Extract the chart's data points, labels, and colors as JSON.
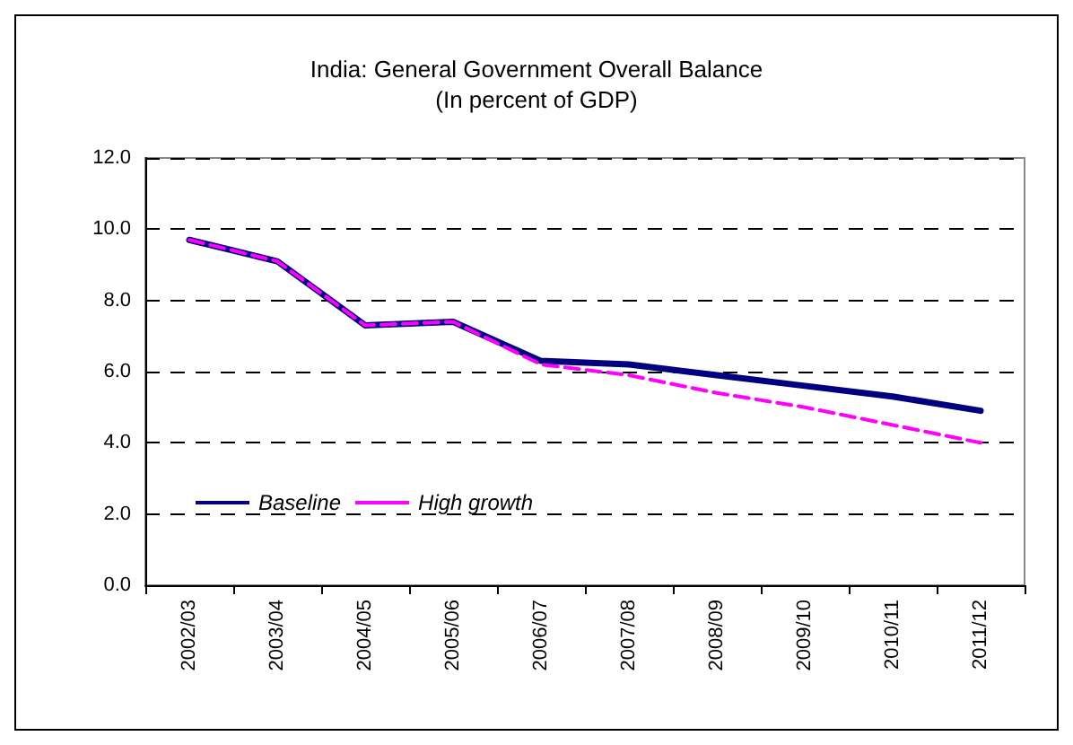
{
  "chart_data": {
    "type": "line",
    "title": "India: General Government Overall Balance\n(In percent of GDP)",
    "categories": [
      "2002/03",
      "2003/04",
      "2004/05",
      "2005/06",
      "2006/07",
      "2007/08",
      "2008/09",
      "2009/10",
      "2010/11",
      "2011/12"
    ],
    "series": [
      {
        "name": "Baseline",
        "color": "#000080",
        "line_style": "solid",
        "values": [
          9.7,
          9.1,
          7.3,
          7.4,
          6.3,
          6.2,
          5.9,
          5.6,
          5.3,
          4.9
        ]
      },
      {
        "name": "High growth",
        "color": "#ff00ff",
        "line_style": "dashed",
        "values": [
          9.7,
          9.1,
          7.3,
          7.4,
          6.2,
          5.9,
          5.4,
          5.0,
          4.5,
          4.0
        ]
      }
    ],
    "ylim": [
      0,
      12
    ],
    "yticks": [
      {
        "value": 0,
        "label": "0.0"
      },
      {
        "value": 2,
        "label": "2.0"
      },
      {
        "value": 4,
        "label": "4.0"
      },
      {
        "value": 6,
        "label": "6.0"
      },
      {
        "value": 8,
        "label": "8.0"
      },
      {
        "value": 10,
        "label": "10.0"
      },
      {
        "value": 12,
        "label": "12.0"
      }
    ],
    "grid": "y",
    "legend": "bottom left",
    "marker": "none"
  }
}
